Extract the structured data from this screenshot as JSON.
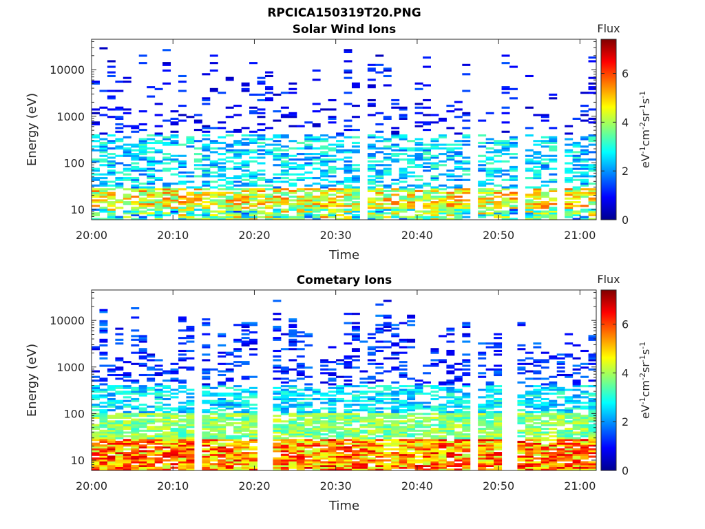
{
  "figure_title": "RPCICA150319T20.PNG",
  "chart_data": [
    {
      "type": "heatmap",
      "title": "Solar Wind Ions",
      "xlabel": "Time",
      "ylabel": "Energy (eV)",
      "yscale": "log",
      "ylim": [
        6,
        45000
      ],
      "xlim": [
        "20:00",
        "21:02"
      ],
      "x_ticks": [
        "20:00",
        "20:10",
        "20:20",
        "20:30",
        "20:40",
        "20:50",
        "21:00"
      ],
      "y_ticks": [
        "10",
        "100",
        "1000",
        "10000"
      ],
      "colorbar": {
        "label": "Flux",
        "units": "eV-1cm-2sr-1s-1",
        "range": [
          0,
          7.4
        ],
        "ticks": [
          "0",
          "2",
          "4",
          "6"
        ],
        "colormap": "jet"
      },
      "seed": 7,
      "profile": "solar"
    },
    {
      "type": "heatmap",
      "title": "Cometary Ions",
      "xlabel": "Time",
      "ylabel": "Energy (eV)",
      "yscale": "log",
      "ylim": [
        6,
        45000
      ],
      "xlim": [
        "20:00",
        "21:02"
      ],
      "x_ticks": [
        "20:00",
        "20:10",
        "20:20",
        "20:30",
        "20:40",
        "20:50",
        "21:00"
      ],
      "y_ticks": [
        "10",
        "100",
        "1000",
        "10000"
      ],
      "colorbar": {
        "label": "Flux",
        "units": "eV-1cm-2sr-1s-1",
        "range": [
          0,
          7.4
        ],
        "ticks": [
          "0",
          "2",
          "4",
          "6"
        ],
        "colormap": "jet"
      },
      "seed": 19,
      "profile": "cometary"
    }
  ]
}
